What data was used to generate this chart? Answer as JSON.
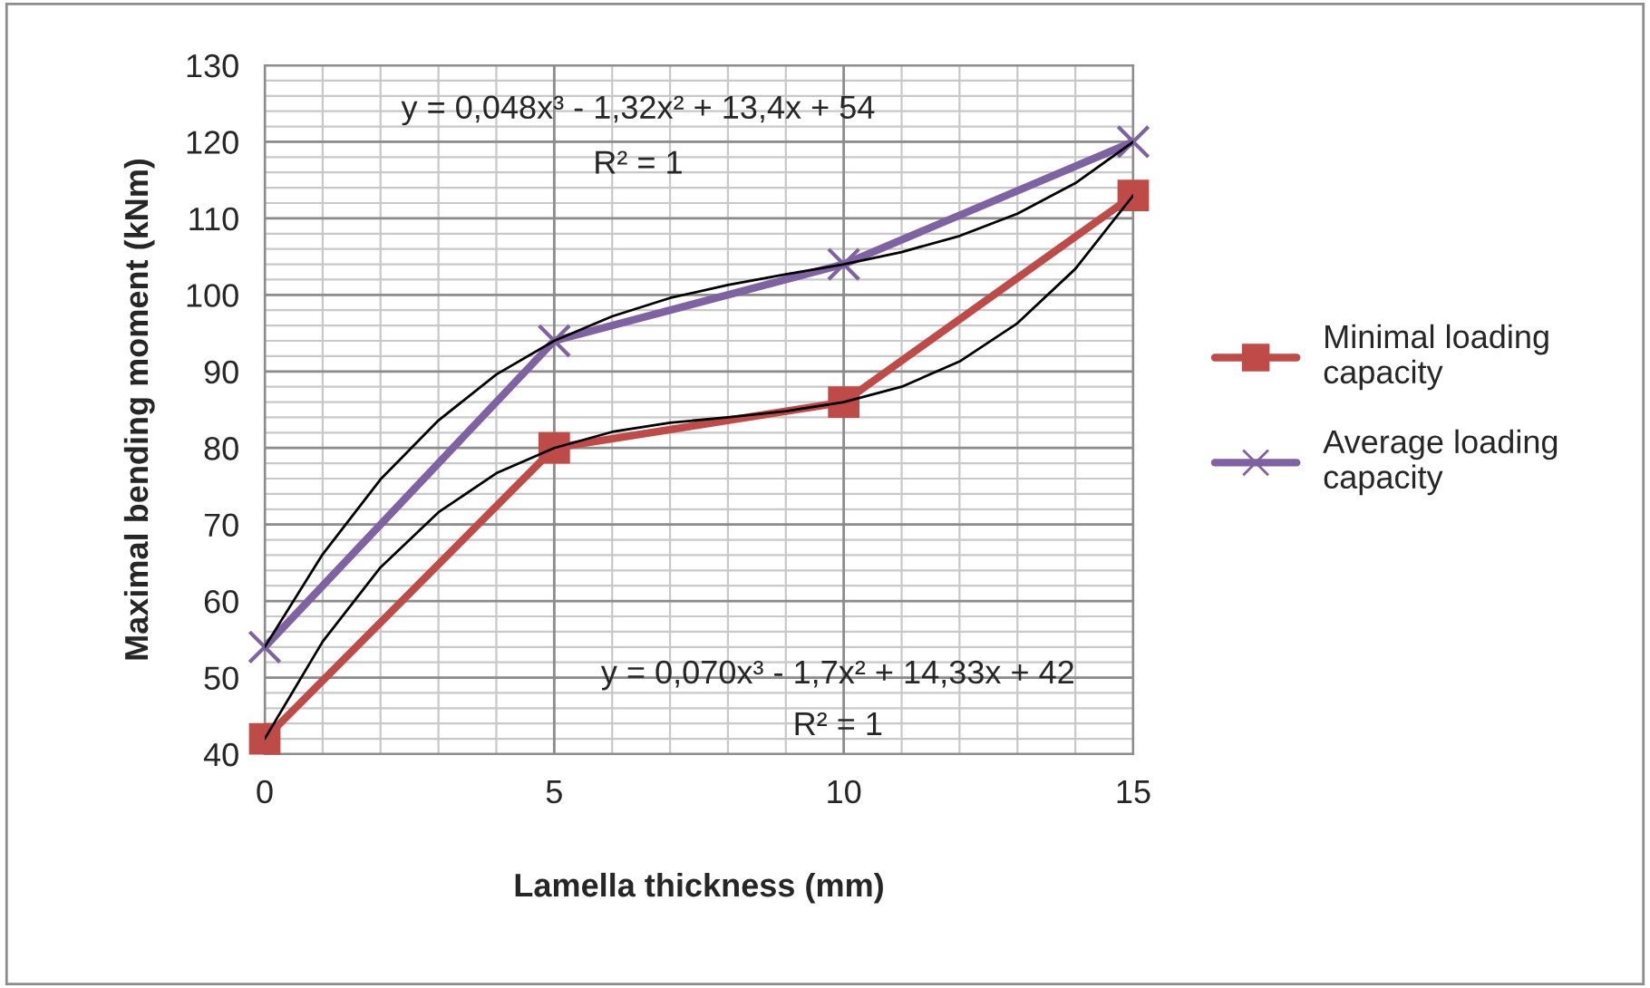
{
  "chart_data": {
    "type": "line",
    "xlabel": "Lamella thickness (mm)",
    "ylabel": "Maximal bending moment (kNm)",
    "xlim": [
      0,
      15
    ],
    "ylim": [
      40,
      130
    ],
    "xticks": [
      0,
      {
        "value": 1,
        "label": null
      },
      {
        "value": 2,
        "label": null
      },
      {
        "value": 3,
        "label": null
      },
      {
        "value": 4,
        "label": null
      },
      5,
      {
        "value": 6,
        "label": null
      },
      {
        "value": 7,
        "label": null
      },
      {
        "value": 8,
        "label": null
      },
      {
        "value": 9,
        "label": null
      },
      10,
      {
        "value": 11,
        "label": null
      },
      {
        "value": 12,
        "label": null
      },
      {
        "value": 13,
        "label": null
      },
      {
        "value": 14,
        "label": null
      },
      15
    ],
    "yticks": [
      40,
      {
        "value": 42,
        "label": null
      },
      {
        "value": 44,
        "label": null
      },
      {
        "value": 46,
        "label": null
      },
      {
        "value": 48,
        "label": null
      },
      50,
      {
        "value": 52,
        "label": null
      },
      {
        "value": 54,
        "label": null
      },
      {
        "value": 56,
        "label": null
      },
      {
        "value": 58,
        "label": null
      },
      60,
      {
        "value": 62,
        "label": null
      },
      {
        "value": 64,
        "label": null
      },
      {
        "value": 66,
        "label": null
      },
      {
        "value": 68,
        "label": null
      },
      70,
      {
        "value": 72,
        "label": null
      },
      {
        "value": 74,
        "label": null
      },
      {
        "value": 76,
        "label": null
      },
      {
        "value": 78,
        "label": null
      },
      80,
      {
        "value": 82,
        "label": null
      },
      {
        "value": 84,
        "label": null
      },
      {
        "value": 86,
        "label": null
      },
      {
        "value": 88,
        "label": null
      },
      90,
      {
        "value": 92,
        "label": null
      },
      {
        "value": 94,
        "label": null
      },
      {
        "value": 96,
        "label": null
      },
      {
        "value": 98,
        "label": null
      },
      100,
      {
        "value": 102,
        "label": null
      },
      {
        "value": 104,
        "label": null
      },
      {
        "value": 106,
        "label": null
      },
      {
        "value": 108,
        "label": null
      },
      110,
      {
        "value": 112,
        "label": null
      },
      {
        "value": 114,
        "label": null
      },
      {
        "value": 116,
        "label": null
      },
      {
        "value": 118,
        "label": null
      },
      120,
      {
        "value": 122,
        "label": null
      },
      {
        "value": 124,
        "label": null
      },
      {
        "value": 126,
        "label": null
      },
      {
        "value": 128,
        "label": null
      },
      130
    ],
    "grid": true,
    "legend": "right",
    "series": [
      {
        "name": "Minimal loading capacity",
        "color": "#be4b48",
        "marker": "square",
        "line_style": "solid",
        "x": [
          0,
          5,
          10,
          15
        ],
        "values": [
          42,
          80,
          86,
          113
        ]
      },
      {
        "name": "Average loading capacity",
        "color": "#7e62a1",
        "marker": "cross",
        "line_style": "solid",
        "x": [
          0,
          5,
          10,
          15
        ],
        "values": [
          54,
          94,
          104,
          120
        ]
      },
      {
        "color": "#000000",
        "marker": "none",
        "line_style": "solid",
        "x": [
          0,
          1,
          2,
          3,
          4,
          5,
          6,
          7,
          8,
          9,
          10,
          11,
          12,
          13,
          14,
          15
        ],
        "values": [
          42,
          54.7,
          64.4,
          71.6,
          76.7,
          80,
          82.1,
          83.3,
          84.0,
          84.8,
          86,
          88.0,
          91.3,
          96.3,
          103.4,
          113
        ]
      },
      {
        "color": "#000000",
        "marker": "none",
        "line_style": "solid",
        "x": [
          0,
          1,
          2,
          3,
          4,
          5,
          6,
          7,
          8,
          9,
          10,
          11,
          12,
          13,
          14,
          15
        ],
        "values": [
          54,
          66.1,
          75.9,
          83.6,
          89.6,
          94,
          97.2,
          99.6,
          101.3,
          102.7,
          104,
          105.6,
          107.7,
          110.6,
          114.6,
          120
        ]
      }
    ],
    "annotations": [
      "y = 0,048x³ - 1,32x² + 13,4x + 54",
      "R² = 1",
      "y = 0,070x³ - 1,7x² + 14,33x + 42",
      "R² = 1"
    ]
  }
}
